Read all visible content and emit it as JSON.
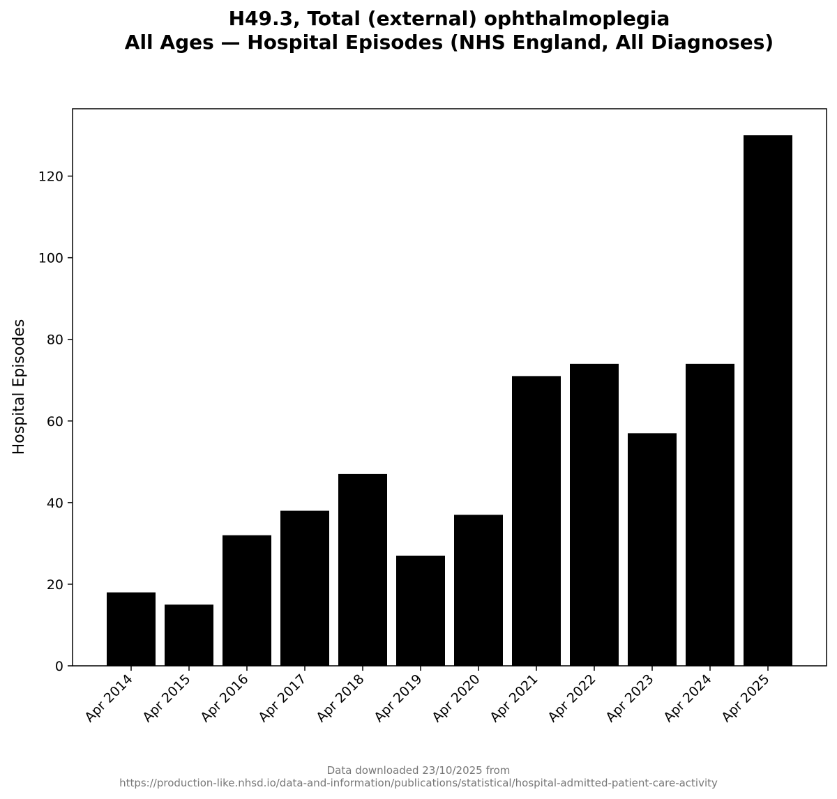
{
  "chart_data": {
    "type": "bar",
    "title": [
      "H49.3, Total (external) ophthalmoplegia",
      "All Ages — Hospital Episodes (NHS England, All Diagnoses)"
    ],
    "ylabel": "Hospital Episodes",
    "xlabel": "",
    "categories": [
      "Apr 2014",
      "Apr 2015",
      "Apr 2016",
      "Apr 2017",
      "Apr 2018",
      "Apr 2019",
      "Apr 2020",
      "Apr 2021",
      "Apr 2022",
      "Apr 2023",
      "Apr 2024",
      "Apr 2025"
    ],
    "values": [
      18,
      15,
      32,
      38,
      47,
      27,
      37,
      71,
      74,
      57,
      74,
      130
    ],
    "yticks": [
      0,
      20,
      40,
      60,
      80,
      100,
      120
    ],
    "ylim": [
      0,
      136.5
    ],
    "bar_color": "#000000",
    "grid": false,
    "legend": "none"
  },
  "footer": {
    "line1": "Data downloaded 23/10/2025 from",
    "line2": "https://production-like.nhsd.io/data-and-information/publications/statistical/hospital-admitted-patient-care-activity"
  }
}
